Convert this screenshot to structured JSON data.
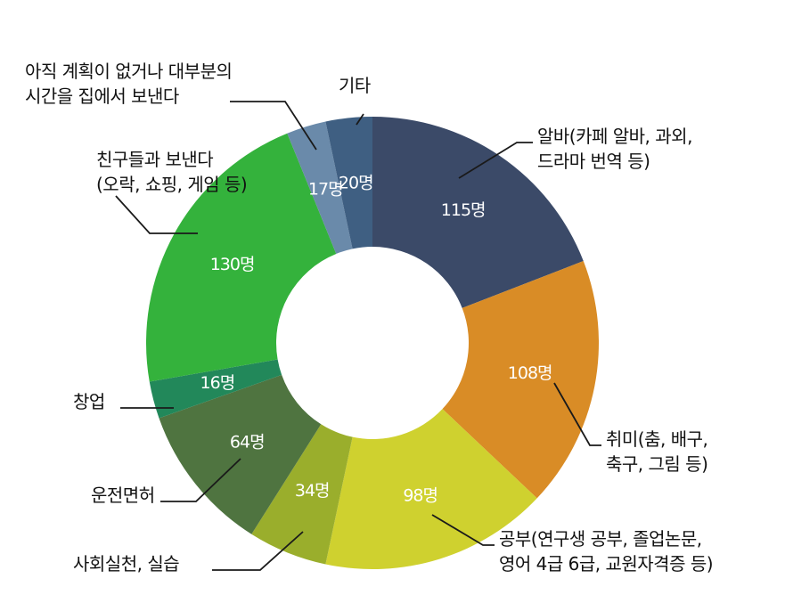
{
  "chart_data": {
    "type": "pie",
    "variant": "donut",
    "title": "",
    "unit": "명",
    "slices": [
      {
        "label": [
          "알바(카페 알바, 과외,",
          "드라마 번역 등)"
        ],
        "value": 115,
        "value_label": "115명",
        "color": "#3b4a68"
      },
      {
        "label": [
          "취미(춤, 배구,",
          "축구, 그림 등)"
        ],
        "value": 108,
        "value_label": "108명",
        "color": "#d98c26"
      },
      {
        "label": [
          "공부(연구생 공부, 졸업논문,",
          "영어 4급 6급, 교원자격증 등)"
        ],
        "value": 98,
        "value_label": "98명",
        "color": "#cfd12f"
      },
      {
        "label": [
          "사회실천, 실습"
        ],
        "value": 34,
        "value_label": "34명",
        "color": "#9aae2c"
      },
      {
        "label": [
          "운전면허"
        ],
        "value": 64,
        "value_label": "64명",
        "color": "#4f7440"
      },
      {
        "label": [
          "창업"
        ],
        "value": 16,
        "value_label": "16명",
        "color": "#22885a"
      },
      {
        "label": [
          "친구들과 보낸다",
          "(오락, 쇼핑, 게임 등)"
        ],
        "value": 130,
        "value_label": "130명",
        "color": "#34b23c"
      },
      {
        "label": [
          "아직 계획이 없거나 대부분의",
          "시간을 집에서 보낸다"
        ],
        "value": 17,
        "value_label": "17명",
        "color": "#6a8aaa"
      },
      {
        "label": [
          "기타"
        ],
        "value": 20,
        "value_label": "20명",
        "color": "#3f5f82"
      }
    ],
    "legend": "none",
    "start_angle_deg": 0,
    "direction": "clockwise"
  }
}
